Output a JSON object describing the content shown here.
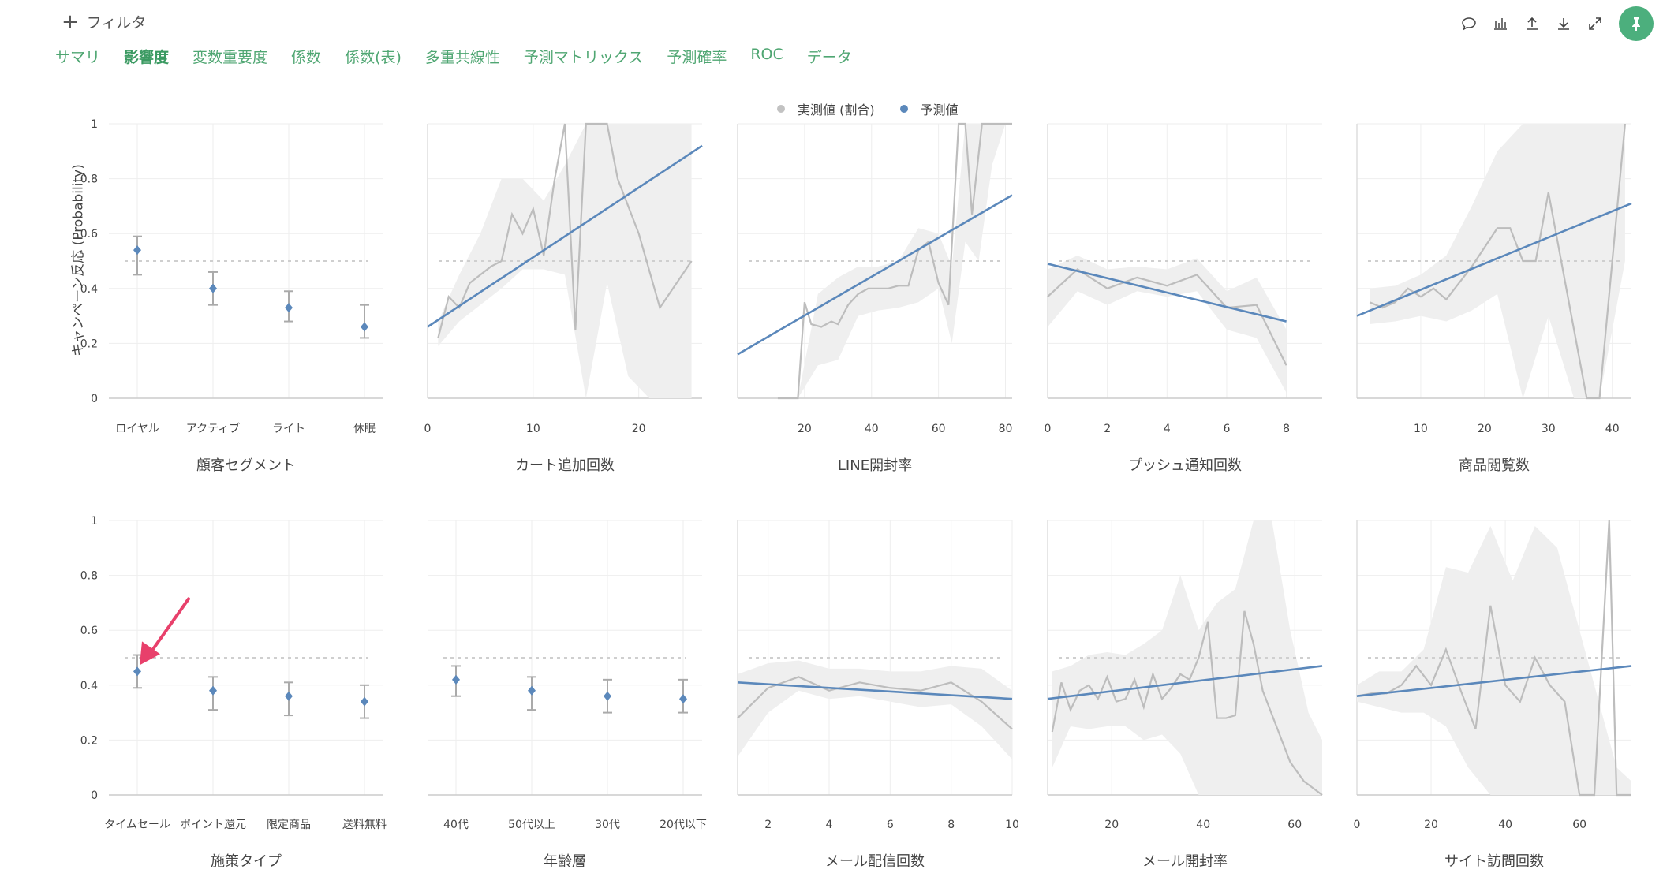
{
  "toolbar": {
    "filter_label": "フィルタ",
    "tabs": [
      {
        "label": "サマリ"
      },
      {
        "label": "影響度",
        "active": true
      },
      {
        "label": "変数重要度"
      },
      {
        "label": "係数"
      },
      {
        "label": "係数(表)"
      },
      {
        "label": "多重共線性"
      },
      {
        "label": "予測マトリックス"
      },
      {
        "label": "予測確率"
      },
      {
        "label": "ROC"
      },
      {
        "label": "データ"
      }
    ],
    "icons": [
      "comment-icon",
      "bar-chart-icon",
      "upload-icon",
      "download-icon",
      "expand-icon",
      "pin-icon"
    ]
  },
  "colors": {
    "accent": "#4fa672",
    "pin_bg": "#4caf7d",
    "actual": "#c2c2c2",
    "predicted": "#5b88bb",
    "band": "#efefef",
    "baseline": "#cfcfcf",
    "arrow": "#e8406b"
  },
  "legend": {
    "actual_label": "実測値 (割合)",
    "predicted_label": "予測値"
  },
  "y_axis_label": "キャンペーン反応 (Probability)",
  "chart_data": [
    {
      "type": "scatter",
      "title": "顧客セグメント",
      "categorical": true,
      "categories": [
        "ロイヤル",
        "アクティブ",
        "ライト",
        "休眠"
      ],
      "values": [
        0.54,
        0.4,
        0.33,
        0.26
      ],
      "lower": [
        0.45,
        0.34,
        0.28,
        0.22
      ],
      "upper": [
        0.59,
        0.46,
        0.39,
        0.34
      ],
      "ylim": [
        0,
        1
      ],
      "yticks": [
        "0",
        "0.2",
        "0.4",
        "0.6",
        "0.8",
        "1"
      ],
      "baseline": 0.5
    },
    {
      "type": "line",
      "title": "カート追加回数",
      "xlim": [
        0,
        26
      ],
      "xticks": [
        0,
        10,
        20
      ],
      "ylim": [
        0,
        1
      ],
      "baseline": 0.5,
      "actual_x": [
        1,
        2,
        3,
        4,
        5,
        6,
        7,
        8,
        9,
        10,
        11,
        12,
        13,
        14,
        15,
        16,
        17,
        18,
        20,
        22,
        25
      ],
      "actual_y": [
        0.22,
        0.37,
        0.33,
        0.42,
        0.45,
        0.48,
        0.5,
        0.67,
        0.6,
        0.69,
        0.52,
        0.79,
        1.0,
        0.25,
        1.0,
        1.0,
        1.0,
        0.8,
        0.6,
        0.33,
        0.5
      ],
      "band_x": [
        1,
        3,
        5,
        7,
        9,
        11,
        13,
        15,
        17,
        19,
        21,
        23,
        25
      ],
      "band_lo": [
        0.19,
        0.28,
        0.34,
        0.4,
        0.47,
        0.47,
        0.45,
        0.0,
        0.42,
        0.08,
        0.0,
        0.0,
        0.0
      ],
      "band_hi": [
        0.28,
        0.45,
        0.6,
        0.8,
        0.8,
        0.72,
        0.85,
        1.0,
        1.0,
        1.0,
        1.0,
        1.0,
        1.0
      ],
      "pred_x": [
        0,
        26
      ],
      "pred_y": [
        0.26,
        0.92
      ]
    },
    {
      "type": "line",
      "title": "LINE開封率",
      "xlim": [
        0,
        82
      ],
      "xticks": [
        20,
        40,
        60,
        80
      ],
      "ylim": [
        0,
        1
      ],
      "baseline": 0.5,
      "actual_x": [
        12,
        15,
        18,
        20,
        22,
        25,
        28,
        30,
        33,
        36,
        39,
        42,
        45,
        48,
        51,
        54,
        57,
        60,
        63,
        66,
        68,
        70,
        73,
        76,
        79,
        82
      ],
      "actual_y": [
        0.0,
        0.0,
        0.0,
        0.35,
        0.27,
        0.26,
        0.28,
        0.27,
        0.34,
        0.38,
        0.4,
        0.4,
        0.4,
        0.41,
        0.41,
        0.54,
        0.57,
        0.42,
        0.34,
        1.0,
        1.0,
        0.67,
        1.0,
        1.0,
        1.0,
        1.0
      ],
      "band_x": [
        12,
        18,
        24,
        30,
        36,
        42,
        48,
        54,
        60,
        64,
        68,
        72,
        76,
        80,
        82
      ],
      "band_lo": [
        0.0,
        0.0,
        0.12,
        0.14,
        0.3,
        0.32,
        0.33,
        0.35,
        0.4,
        0.2,
        0.57,
        0.5,
        0.85,
        1.0,
        1.0
      ],
      "band_hi": [
        0.0,
        0.0,
        0.38,
        0.44,
        0.48,
        0.48,
        0.5,
        0.62,
        0.6,
        0.48,
        1.0,
        1.0,
        1.0,
        1.0,
        1.0
      ],
      "pred_x": [
        0,
        82
      ],
      "pred_y": [
        0.16,
        0.74
      ]
    },
    {
      "type": "line",
      "title": "プッシュ通知回数",
      "xlim": [
        0,
        9.2
      ],
      "xticks": [
        0,
        2,
        4,
        6,
        8
      ],
      "ylim": [
        0,
        1
      ],
      "baseline": 0.5,
      "actual_x": [
        0,
        1,
        2,
        3,
        4,
        5,
        6,
        7,
        8
      ],
      "actual_y": [
        0.37,
        0.47,
        0.4,
        0.44,
        0.41,
        0.45,
        0.33,
        0.34,
        0.12
      ],
      "band_x": [
        0,
        1,
        2,
        3,
        4,
        5,
        6,
        7,
        8
      ],
      "band_lo": [
        0.26,
        0.39,
        0.34,
        0.39,
        0.37,
        0.39,
        0.25,
        0.22,
        0.02
      ],
      "band_hi": [
        0.47,
        0.52,
        0.47,
        0.48,
        0.47,
        0.51,
        0.39,
        0.44,
        0.25
      ],
      "pred_x": [
        0,
        8
      ],
      "pred_y": [
        0.49,
        0.28
      ]
    },
    {
      "type": "line",
      "title": "商品閲覧数",
      "xlim": [
        0,
        43
      ],
      "xticks": [
        10,
        20,
        30,
        40
      ],
      "ylim": [
        0,
        1
      ],
      "baseline": 0.5,
      "actual_x": [
        2,
        4,
        6,
        8,
        10,
        12,
        14,
        16,
        18,
        20,
        22,
        24,
        26,
        28,
        30,
        32,
        34,
        36,
        38,
        40,
        42
      ],
      "actual_y": [
        0.35,
        0.33,
        0.35,
        0.4,
        0.37,
        0.4,
        0.36,
        0.42,
        0.48,
        0.55,
        0.62,
        0.62,
        0.5,
        0.5,
        0.75,
        0.5,
        0.25,
        0.0,
        0.0,
        0.5,
        1.0
      ],
      "band_x": [
        2,
        6,
        10,
        14,
        18,
        22,
        26,
        30,
        34,
        38,
        42
      ],
      "band_lo": [
        0.27,
        0.28,
        0.3,
        0.28,
        0.32,
        0.38,
        0.0,
        0.3,
        0.0,
        0.0,
        0.5
      ],
      "band_hi": [
        0.4,
        0.41,
        0.45,
        0.52,
        0.7,
        0.9,
        1.0,
        1.0,
        1.0,
        1.0,
        1.0
      ],
      "pred_x": [
        0,
        43
      ],
      "pred_y": [
        0.3,
        0.71
      ]
    },
    {
      "type": "scatter",
      "title": "施策タイプ",
      "categorical": true,
      "categories": [
        "タイムセール",
        "ポイント還元",
        "限定商品",
        "送料無料"
      ],
      "values": [
        0.45,
        0.38,
        0.36,
        0.34
      ],
      "lower": [
        0.39,
        0.31,
        0.29,
        0.28
      ],
      "upper": [
        0.51,
        0.43,
        0.41,
        0.4
      ],
      "ylim": [
        0,
        1
      ],
      "yticks": [
        "0",
        "0.2",
        "0.4",
        "0.6",
        "0.8",
        "1"
      ],
      "baseline": 0.5,
      "annotation": "arrow"
    },
    {
      "type": "scatter",
      "title": "年齢層",
      "categorical": true,
      "categories": [
        "40代",
        "50代以上",
        "30代",
        "20代以下"
      ],
      "values": [
        0.42,
        0.38,
        0.36,
        0.35
      ],
      "lower": [
        0.36,
        0.31,
        0.3,
        0.3
      ],
      "upper": [
        0.47,
        0.43,
        0.42,
        0.42
      ],
      "ylim": [
        0,
        1
      ],
      "baseline": 0.5
    },
    {
      "type": "line",
      "title": "メール配信回数",
      "xlim": [
        1,
        10
      ],
      "xticks": [
        2,
        4,
        6,
        8,
        10
      ],
      "ylim": [
        0,
        1
      ],
      "baseline": 0.5,
      "actual_x": [
        1,
        2,
        3,
        4,
        5,
        6,
        7,
        8,
        9,
        10
      ],
      "actual_y": [
        0.28,
        0.39,
        0.43,
        0.38,
        0.41,
        0.39,
        0.38,
        0.41,
        0.34,
        0.24
      ],
      "band_x": [
        1,
        2,
        3,
        4,
        5,
        6,
        7,
        8,
        9,
        10
      ],
      "band_lo": [
        0.14,
        0.3,
        0.38,
        0.35,
        0.36,
        0.34,
        0.32,
        0.33,
        0.25,
        0.13
      ],
      "band_hi": [
        0.44,
        0.48,
        0.49,
        0.46,
        0.46,
        0.45,
        0.45,
        0.47,
        0.46,
        0.38
      ],
      "pred_x": [
        1,
        10
      ],
      "pred_y": [
        0.41,
        0.35
      ]
    },
    {
      "type": "line",
      "title": "メール開封率",
      "xlim": [
        6,
        66
      ],
      "xticks": [
        20,
        40,
        60
      ],
      "ylim": [
        0,
        1
      ],
      "baseline": 0.5,
      "actual_x": [
        7,
        9,
        11,
        13,
        15,
        17,
        19,
        21,
        23,
        25,
        27,
        29,
        31,
        33,
        35,
        37,
        39,
        41,
        43,
        45,
        47,
        49,
        51,
        53,
        56,
        59,
        62,
        66
      ],
      "actual_y": [
        0.23,
        0.41,
        0.31,
        0.38,
        0.4,
        0.35,
        0.43,
        0.34,
        0.35,
        0.42,
        0.32,
        0.44,
        0.35,
        0.39,
        0.44,
        0.42,
        0.5,
        0.63,
        0.28,
        0.28,
        0.29,
        0.67,
        0.55,
        0.38,
        0.25,
        0.12,
        0.05,
        0.0
      ],
      "band_x": [
        7,
        11,
        15,
        19,
        23,
        27,
        31,
        35,
        39,
        43,
        47,
        51,
        55,
        59,
        63,
        66
      ],
      "band_lo": [
        0.1,
        0.25,
        0.24,
        0.25,
        0.25,
        0.2,
        0.22,
        0.15,
        0.0,
        0.0,
        0.0,
        0.0,
        0.0,
        0.0,
        0.0,
        0.0
      ],
      "band_hi": [
        0.45,
        0.47,
        0.51,
        0.52,
        0.51,
        0.55,
        0.6,
        0.8,
        0.6,
        0.7,
        0.75,
        1.0,
        1.0,
        0.6,
        0.3,
        0.2
      ],
      "pred_x": [
        6,
        66
      ],
      "pred_y": [
        0.35,
        0.47
      ]
    },
    {
      "type": "line",
      "title": "サイト訪問回数",
      "xlim": [
        0,
        74
      ],
      "xticks": [
        0,
        20,
        40,
        60
      ],
      "ylim": [
        0,
        1
      ],
      "baseline": 0.5,
      "actual_x": [
        0,
        4,
        8,
        12,
        16,
        20,
        24,
        28,
        32,
        36,
        40,
        44,
        48,
        52,
        56,
        60,
        64,
        66,
        68,
        70,
        74
      ],
      "actual_y": [
        0.36,
        0.37,
        0.37,
        0.4,
        0.47,
        0.4,
        0.53,
        0.38,
        0.24,
        0.69,
        0.4,
        0.34,
        0.5,
        0.4,
        0.34,
        0.0,
        0.0,
        0.5,
        1.0,
        0.0,
        0.0
      ],
      "band_x": [
        0,
        6,
        12,
        18,
        24,
        30,
        36,
        42,
        48,
        54,
        60,
        66,
        70,
        74
      ],
      "band_lo": [
        0.34,
        0.32,
        0.3,
        0.3,
        0.25,
        0.1,
        0.0,
        0.0,
        0.0,
        0.0,
        0.0,
        0.0,
        0.0,
        0.0
      ],
      "band_hi": [
        0.4,
        0.45,
        0.45,
        0.53,
        0.83,
        0.81,
        0.98,
        0.78,
        0.98,
        0.9,
        0.6,
        0.3,
        0.1,
        0.05
      ],
      "pred_x": [
        0,
        74
      ],
      "pred_y": [
        0.36,
        0.47
      ]
    }
  ]
}
